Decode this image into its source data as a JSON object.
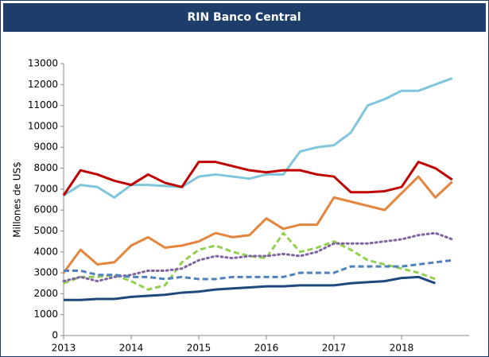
{
  "chart_data": {
    "type": "line",
    "title": "RIN Banco Central",
    "y_label": "Millones de US$",
    "x": [
      2013,
      2013.25,
      2013.5,
      2013.75,
      2014,
      2014.25,
      2014.5,
      2014.75,
      2015,
      2015.25,
      2015.5,
      2015.75,
      2016,
      2016.25,
      2016.5,
      2016.75,
      2017,
      2017.25,
      2017.5,
      2017.75,
      2018,
      2018.25,
      2018.5,
      2018.75
    ],
    "xlim": [
      2013,
      2019
    ],
    "xticks": [
      2013,
      2014,
      2015,
      2016,
      2017,
      2018
    ],
    "ylim": [
      0,
      13000
    ],
    "yticks": [
      0,
      1000,
      2000,
      3000,
      4000,
      5000,
      6000,
      7000,
      8000,
      9000,
      10000,
      11000,
      12000,
      13000
    ],
    "grid": false,
    "series": [
      {
        "color": "#7fc6dc",
        "dash": "solid",
        "values": [
          6700,
          7200,
          7100,
          6600,
          7200,
          7200,
          7150,
          7100,
          7600,
          7700,
          7600,
          7500,
          7700,
          7700,
          8800,
          9000,
          9100,
          9700,
          11000,
          11300,
          11700,
          11700,
          12000,
          12300
        ]
      },
      {
        "color": "#c00000",
        "dash": "solid",
        "values": [
          6700,
          7900,
          7700,
          7400,
          7200,
          7700,
          7300,
          7100,
          8300,
          8300,
          8100,
          7900,
          7800,
          7900,
          7900,
          7700,
          7600,
          6850,
          6850,
          6900,
          7100,
          8300,
          8000,
          7450
        ]
      },
      {
        "color": "#e3853d",
        "dash": "solid",
        "values": [
          3000,
          4100,
          3400,
          3500,
          4300,
          4700,
          4200,
          4300,
          4500,
          4900,
          4700,
          4800,
          5600,
          5100,
          5300,
          5300,
          6600,
          6400,
          6200,
          6000,
          6800,
          7600,
          6600,
          7350
        ]
      },
      {
        "color": "#92d050",
        "dash": "dashed",
        "values": [
          2500,
          2800,
          2800,
          2900,
          2600,
          2200,
          2400,
          3500,
          4100,
          4300,
          4000,
          3800,
          3700,
          4900,
          4000,
          4200,
          4500,
          4100,
          3600,
          3400,
          3200,
          3000,
          2700,
          null
        ]
      },
      {
        "color": "#8064a2",
        "dash": "dotted",
        "values": [
          2600,
          2800,
          2600,
          2800,
          2900,
          3100,
          3100,
          3200,
          3600,
          3800,
          3700,
          3800,
          3800,
          3900,
          3800,
          4000,
          4400,
          4400,
          4400,
          4500,
          4600,
          4800,
          4900,
          4600
        ]
      },
      {
        "color": "#4f81bd",
        "dash": "dashed",
        "values": [
          3100,
          3100,
          2900,
          2900,
          2800,
          2800,
          2700,
          2800,
          2700,
          2700,
          2800,
          2800,
          2800,
          2800,
          3000,
          3000,
          3000,
          3300,
          3300,
          3300,
          3300,
          3400,
          3500,
          3600
        ]
      },
      {
        "color": "#1f497d",
        "dash": "solid",
        "values": [
          1700,
          1700,
          1750,
          1750,
          1850,
          1900,
          1950,
          2050,
          2100,
          2200,
          2250,
          2300,
          2350,
          2350,
          2400,
          2400,
          2400,
          2500,
          2550,
          2600,
          2750,
          2800,
          2500,
          null
        ]
      }
    ]
  }
}
